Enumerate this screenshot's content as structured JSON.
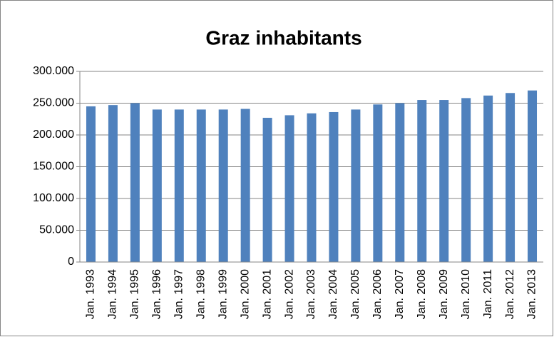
{
  "chart_data": {
    "type": "bar",
    "title": "Graz inhabitants",
    "categories": [
      "Jan. 1993",
      "Jan. 1994",
      "Jan. 1995",
      "Jan. 1996",
      "Jan. 1997",
      "Jan. 1998",
      "Jan. 1999",
      "Jan. 2000",
      "Jan. 2001",
      "Jan. 2002",
      "Jan. 2003",
      "Jan. 2004",
      "Jan. 2005",
      "Jan. 2006",
      "Jan. 2007",
      "Jan. 2008",
      "Jan. 2009",
      "Jan. 2010",
      "Jan. 2011",
      "Jan. 2012",
      "Jan. 2013"
    ],
    "values": [
      245000,
      247000,
      250000,
      240000,
      240000,
      240000,
      240000,
      241000,
      227000,
      231000,
      234000,
      236000,
      240000,
      248000,
      250000,
      255000,
      255000,
      258000,
      262000,
      266000,
      270000
    ],
    "color": "#4f81bd",
    "ylim": [
      0,
      300000
    ],
    "yticks": [
      0,
      {
        "value": 50000,
        "label": "50.000"
      },
      {
        "value": 100000,
        "label": "100.000"
      },
      {
        "value": 150000,
        "label": "150.000"
      },
      {
        "value": 200000,
        "label": "200.000"
      },
      {
        "value": 250000,
        "label": "250.000"
      },
      {
        "value": 300000,
        "label": "300.000"
      }
    ],
    "grid": true
  }
}
